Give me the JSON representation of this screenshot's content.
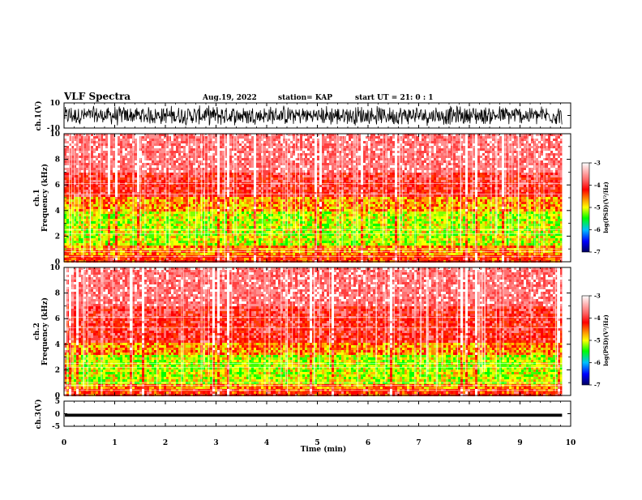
{
  "header": {
    "title": "VLF Spectra",
    "date": "Aug.19, 2022",
    "station": "station= KAP",
    "start": "start  UT =   21: 0  : 1"
  },
  "chart_data": [
    {
      "type": "line",
      "title": "",
      "ylabel": "ch.1(V)",
      "ylim": [
        -10,
        10
      ],
      "y_ticks": [
        "10",
        "-10"
      ],
      "description": "dense broadband waveform filling most of range"
    },
    {
      "type": "heatmap",
      "ylabel": "ch.1\nFrequency  (kHz)",
      "ylim": [
        0,
        10
      ],
      "y_ticks": [
        "0",
        "2",
        "4",
        "6",
        "8",
        "10"
      ],
      "zlim": [
        -7,
        -3
      ],
      "colorbar": {
        "label": "log(PSD)(V²/Hz)",
        "ticks": [
          "-3",
          "-4",
          "-5",
          "-6",
          "-7"
        ]
      }
    },
    {
      "type": "heatmap",
      "ylabel": "ch.2\nFrequency  (kHz)",
      "ylim": [
        0,
        10
      ],
      "y_ticks": [
        "0",
        "2",
        "4",
        "6",
        "8",
        "10"
      ],
      "zlim": [
        -7,
        -3
      ],
      "colorbar": {
        "label": "log(PSD)(V²/Hz)",
        "ticks": [
          "-3",
          "-4",
          "-5",
          "-6",
          "-7"
        ]
      }
    },
    {
      "type": "line",
      "ylabel": "ch.3(V)",
      "ylim": [
        -5,
        5
      ],
      "y_ticks": [
        "5",
        "0",
        "-5"
      ],
      "description": "narrow constant band around -0.5 V"
    }
  ],
  "x_axis": {
    "label": "Time  (min)",
    "xlim": [
      0,
      10
    ],
    "ticks": [
      "0",
      "1",
      "2",
      "3",
      "4",
      "5",
      "6",
      "7",
      "8",
      "9",
      "10"
    ],
    "data_end": 9.83
  },
  "colors": {
    "spec_low": "#00ff00",
    "spec_mid": "#ffff00",
    "spec_high": "#ff0000",
    "background": "#ffffff"
  }
}
